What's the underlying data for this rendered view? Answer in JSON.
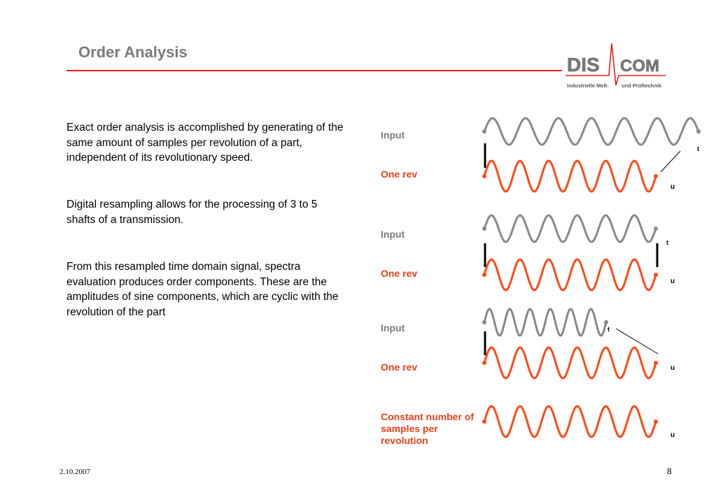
{
  "slide": {
    "title": "Order Analysis",
    "page_number": "8",
    "date": "2.10.2007"
  },
  "logo": {
    "part1": "DIS",
    "part2": "COM",
    "tagline_left": "Industrielle Meß-",
    "tagline_right": "und Prüftechnik",
    "colors": {
      "text": "#7a7a7a",
      "pulse": "#e8201a"
    }
  },
  "body": {
    "paragraph1": "Exact order analysis is accomplished by generating of the same amount of samples per revolution of a part, independent of its revolutionary speed.",
    "paragraph2": "Digital resampling allows for the processing of 3 to 5  shafts of a transmission.",
    "paragraph3": "From this resampled time domain signal, spectra evaluation produces order components. These are the amplitudes of sine components, which are cyclic with the revolution of the part"
  },
  "diagram": {
    "colors": {
      "input": "#888888",
      "resampled": "#ff4a1a"
    },
    "groups": [
      {
        "input_label": "Input",
        "output_label": "One rev",
        "input_axis": "t",
        "output_axis": "u"
      },
      {
        "input_label": "Input",
        "output_label": "One rev",
        "input_axis": "t",
        "output_axis": "u"
      },
      {
        "input_label": "Input",
        "output_label": "One rev",
        "input_axis": "t",
        "output_axis": "u"
      }
    ],
    "final_label": "Constant number of samples per revolution",
    "final_axis": "u"
  }
}
